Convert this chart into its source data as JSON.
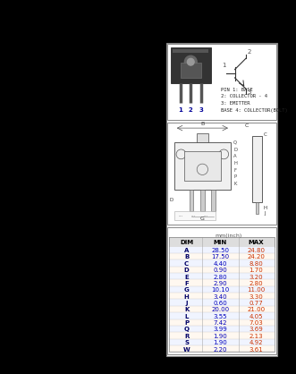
{
  "bg_color": "#000000",
  "panel_bg": "#ffffff",
  "panel_border": "#888888",
  "pin_text": [
    "PIN 1: BASE",
    "2: COLLECTOR - 4",
    "3: EMITTER",
    "BASE 4: COLLECTOR(BOLT)"
  ],
  "table": {
    "title": "mm(inch)",
    "header": [
      "DIM",
      "MIN",
      "MAX"
    ],
    "rows": [
      [
        "A",
        "28.50",
        "24.80"
      ],
      [
        "B",
        "17.50",
        "24.20"
      ],
      [
        "C",
        "4.40",
        "8.80"
      ],
      [
        "D",
        "0.90",
        "1.70"
      ],
      [
        "E",
        "2.80",
        "3.20"
      ],
      [
        "F",
        "2.90",
        "2.80"
      ],
      [
        "G",
        "10.10",
        "11.00"
      ],
      [
        "H",
        "3.40",
        "3.30"
      ],
      [
        "J",
        "0.60",
        "0.77"
      ],
      [
        "K",
        "20.00",
        "21.00"
      ],
      [
        "L",
        "3.55",
        "4.05"
      ],
      [
        "P",
        "7.42",
        "7.03"
      ],
      [
        "Q",
        "3.99",
        "3.69"
      ],
      [
        "R",
        "1.90",
        "2.13"
      ],
      [
        "S",
        "1.90",
        "4.92"
      ],
      [
        "W",
        "2.20",
        "3.61"
      ]
    ]
  }
}
